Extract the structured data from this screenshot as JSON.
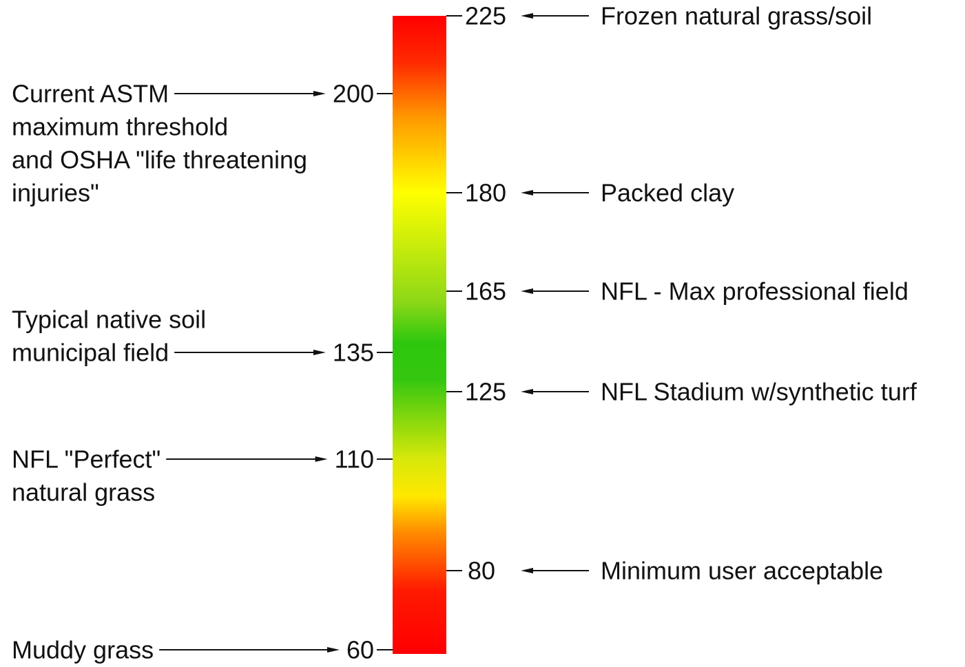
{
  "scale": {
    "min": 60,
    "max": 225,
    "gradient": [
      {
        "value": 225,
        "color": "#ff0000"
      },
      {
        "value": 210,
        "color": "#ff2a00"
      },
      {
        "value": 195,
        "color": "#ff9a00"
      },
      {
        "value": 180,
        "color": "#ffff00"
      },
      {
        "value": 160,
        "color": "#8ed817"
      },
      {
        "value": 140,
        "color": "#2ec70e"
      },
      {
        "value": 128,
        "color": "#35c710"
      },
      {
        "value": 110,
        "color": "#d8e80a"
      },
      {
        "value": 100,
        "color": "#ffe800"
      },
      {
        "value": 90,
        "color": "#ff8a00"
      },
      {
        "value": 75,
        "color": "#ff1a00"
      },
      {
        "value": 60,
        "color": "#ff0000"
      }
    ]
  },
  "left_markers": [
    {
      "value": 200,
      "label": "200",
      "text": [
        "Current ASTM",
        "maximum threshold",
        "and OSHA \"life threatening",
        "injuries\""
      ]
    },
    {
      "value": 135,
      "label": "135",
      "text": [
        "Typical native soil",
        "municipal field"
      ]
    },
    {
      "value": 110,
      "label": "110",
      "text": [
        "NFL \"Perfect\"",
        "natural grass"
      ]
    },
    {
      "value": 60,
      "label": "60",
      "text": [
        "Muddy grass"
      ]
    }
  ],
  "right_markers": [
    {
      "value": 225,
      "label": "225",
      "text": "Frozen natural grass/soil"
    },
    {
      "value": 180,
      "label": "180",
      "text": "Packed clay"
    },
    {
      "value": 165,
      "label": "165",
      "text": "NFL - Max professional field"
    },
    {
      "value": 125,
      "label": "125",
      "text": "NFL Stadium w/synthetic turf"
    },
    {
      "value": 80,
      "label": "80",
      "text": "Minimum user acceptable"
    }
  ]
}
